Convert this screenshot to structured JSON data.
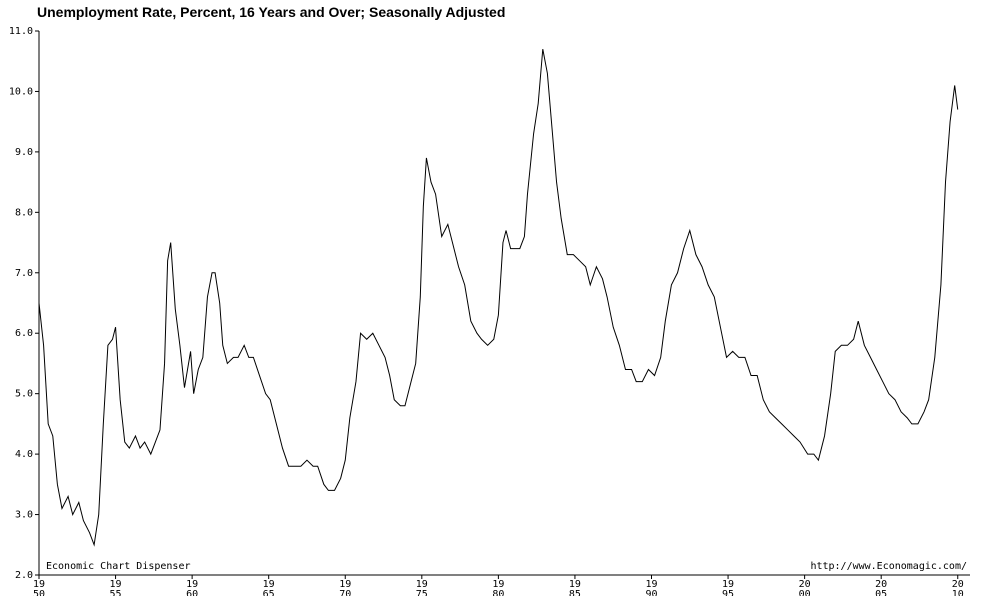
{
  "chart_data": {
    "type": "line",
    "title": "Unemployment Rate, Percent, 16 Years and Over; Seasonally Adjusted",
    "annotations": [
      "Economic Chart Dispenser",
      "http://www.Economagic.com/"
    ],
    "color": "#000000",
    "x": [
      1950.0,
      1950.3,
      1950.6,
      1950.9,
      1951.2,
      1951.5,
      1951.9,
      1952.2,
      1952.6,
      1952.9,
      1953.3,
      1953.6,
      1953.9,
      1954.2,
      1954.5,
      1954.8,
      1955.0,
      1955.3,
      1955.6,
      1955.9,
      1956.3,
      1956.6,
      1956.9,
      1957.3,
      1957.6,
      1957.9,
      1958.2,
      1958.4,
      1958.6,
      1958.9,
      1959.2,
      1959.5,
      1959.9,
      1960.1,
      1960.4,
      1960.7,
      1961.0,
      1961.3,
      1961.5,
      1961.8,
      1962.0,
      1962.3,
      1962.7,
      1963.0,
      1963.4,
      1963.7,
      1964.0,
      1964.4,
      1964.8,
      1965.1,
      1965.5,
      1965.9,
      1966.3,
      1966.7,
      1967.1,
      1967.5,
      1967.9,
      1968.2,
      1968.6,
      1968.9,
      1969.3,
      1969.7,
      1970.0,
      1970.3,
      1970.7,
      1971.0,
      1971.4,
      1971.8,
      1972.2,
      1972.6,
      1972.9,
      1973.2,
      1973.6,
      1973.9,
      1974.2,
      1974.6,
      1974.9,
      1975.1,
      1975.3,
      1975.6,
      1975.9,
      1976.3,
      1976.7,
      1977.0,
      1977.4,
      1977.8,
      1978.2,
      1978.6,
      1978.9,
      1979.3,
      1979.7,
      1980.0,
      1980.3,
      1980.5,
      1980.8,
      1981.1,
      1981.4,
      1981.7,
      1981.9,
      1982.3,
      1982.6,
      1982.9,
      1983.2,
      1983.5,
      1983.8,
      1984.1,
      1984.5,
      1984.9,
      1985.3,
      1985.7,
      1986.0,
      1986.4,
      1986.8,
      1987.1,
      1987.5,
      1987.9,
      1988.3,
      1988.7,
      1989.0,
      1989.4,
      1989.8,
      1990.2,
      1990.6,
      1990.9,
      1991.3,
      1991.7,
      1992.1,
      1992.5,
      1992.9,
      1993.3,
      1993.7,
      1994.1,
      1994.5,
      1994.9,
      1995.3,
      1995.7,
      1996.1,
      1996.5,
      1996.9,
      1997.3,
      1997.7,
      1998.1,
      1998.5,
      1998.9,
      1999.3,
      1999.7,
      2000.2,
      2000.6,
      2000.9,
      2001.3,
      2001.7,
      2002.0,
      2002.4,
      2002.8,
      2003.2,
      2003.5,
      2003.9,
      2004.3,
      2004.7,
      2005.1,
      2005.5,
      2005.9,
      2006.3,
      2006.7,
      2007.0,
      2007.4,
      2007.8,
      2008.1,
      2008.5,
      2008.9,
      2009.2,
      2009.5,
      2009.8,
      2010.0
    ],
    "values": [
      6.5,
      5.8,
      4.5,
      4.3,
      3.5,
      3.1,
      3.3,
      3.0,
      3.2,
      2.9,
      2.7,
      2.5,
      3.0,
      4.5,
      5.8,
      5.9,
      6.1,
      4.9,
      4.2,
      4.1,
      4.3,
      4.1,
      4.2,
      4.0,
      4.2,
      4.4,
      5.5,
      7.2,
      7.5,
      6.4,
      5.8,
      5.1,
      5.7,
      5.0,
      5.4,
      5.6,
      6.6,
      7.0,
      7.0,
      6.5,
      5.8,
      5.5,
      5.6,
      5.6,
      5.8,
      5.6,
      5.6,
      5.3,
      5.0,
      4.9,
      4.5,
      4.1,
      3.8,
      3.8,
      3.8,
      3.9,
      3.8,
      3.8,
      3.5,
      3.4,
      3.4,
      3.6,
      3.9,
      4.6,
      5.2,
      6.0,
      5.9,
      6.0,
      5.8,
      5.6,
      5.3,
      4.9,
      4.8,
      4.8,
      5.1,
      5.5,
      6.6,
      8.1,
      8.9,
      8.5,
      8.3,
      7.6,
      7.8,
      7.5,
      7.1,
      6.8,
      6.2,
      6.0,
      5.9,
      5.8,
      5.9,
      6.3,
      7.5,
      7.7,
      7.4,
      7.4,
      7.4,
      7.6,
      8.3,
      9.3,
      9.8,
      10.7,
      10.3,
      9.4,
      8.5,
      7.9,
      7.3,
      7.3,
      7.2,
      7.1,
      6.8,
      7.1,
      6.9,
      6.6,
      6.1,
      5.8,
      5.4,
      5.4,
      5.2,
      5.2,
      5.4,
      5.3,
      5.6,
      6.2,
      6.8,
      7.0,
      7.4,
      7.7,
      7.3,
      7.1,
      6.8,
      6.6,
      6.1,
      5.6,
      5.7,
      5.6,
      5.6,
      5.3,
      5.3,
      4.9,
      4.7,
      4.6,
      4.5,
      4.4,
      4.3,
      4.2,
      4.0,
      4.0,
      3.9,
      4.3,
      5.0,
      5.7,
      5.8,
      5.8,
      5.9,
      6.2,
      5.8,
      5.6,
      5.4,
      5.2,
      5.0,
      4.9,
      4.7,
      4.6,
      4.5,
      4.5,
      4.7,
      4.9,
      5.6,
      6.8,
      8.5,
      9.5,
      10.1,
      9.7
    ],
    "xlim": [
      1950,
      2010.8
    ],
    "xticks": [
      {
        "value": 1950,
        "label": "1950"
      },
      {
        "value": 1955,
        "label": "1955"
      },
      {
        "value": 1960,
        "label": "1960"
      },
      {
        "value": 1965,
        "label": "1965"
      },
      {
        "value": 1970,
        "label": "1970"
      },
      {
        "value": 1975,
        "label": "1975"
      },
      {
        "value": 1980,
        "label": "1980"
      },
      {
        "value": 1985,
        "label": "1985"
      },
      {
        "value": 1990,
        "label": "1990"
      },
      {
        "value": 1995,
        "label": "1995"
      },
      {
        "value": 2000,
        "label": "2000"
      },
      {
        "value": 2005,
        "label": "2005"
      },
      {
        "value": 2010,
        "label": "2010"
      }
    ],
    "ylim": [
      2,
      11
    ],
    "yticks": [
      {
        "value": 2,
        "label": "2.0"
      },
      {
        "value": 3,
        "label": "3.0"
      },
      {
        "value": 4,
        "label": "4.0"
      },
      {
        "value": 5,
        "label": "5.0"
      },
      {
        "value": 6,
        "label": "6.0"
      },
      {
        "value": 7,
        "label": "7.0"
      },
      {
        "value": 8,
        "label": "8.0"
      },
      {
        "value": 9,
        "label": "9.0"
      },
      {
        "value": 10,
        "label": "10.0"
      },
      {
        "value": 11,
        "label": "11.0"
      }
    ]
  }
}
